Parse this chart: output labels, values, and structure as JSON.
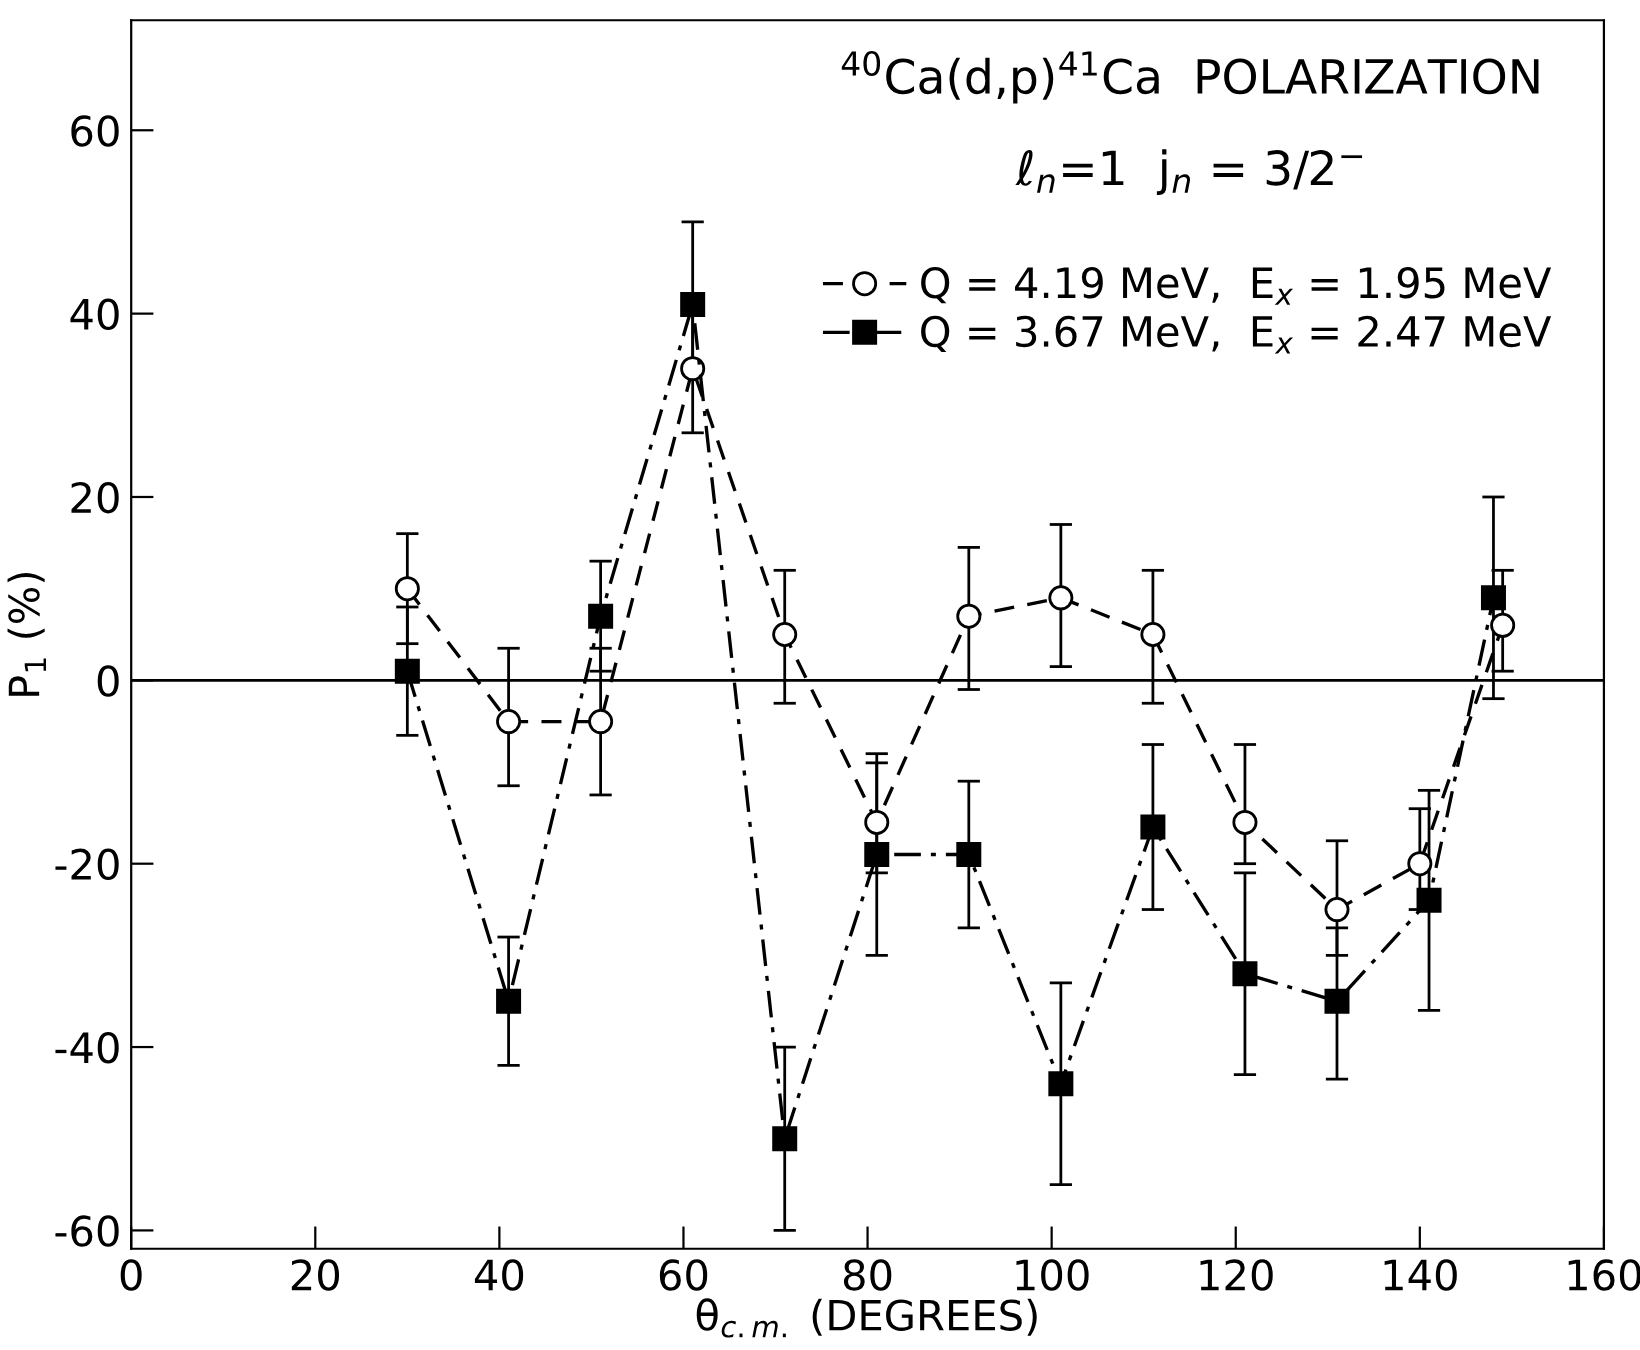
{
  "chart_data": {
    "type": "line",
    "title": "$^{40}$Ca(d,p)$^{41}$Ca  POLARIZATION",
    "subtitle": "ℓ$_{n}$=1  j$_{n}$ = 3/2$^{−}$",
    "xlabel": "θ$_{c.m.}$ (DEGREES)",
    "ylabel": "P$_{1}$ (%)",
    "series": [
      {
        "name": "Q = 4.19 MeV,  E$_{x}$ = 1.95 MeV",
        "color": "#000000",
        "marker": "circle",
        "line_style": "dashed",
        "x": [
          30,
          41,
          51,
          61,
          71,
          81,
          91,
          101,
          111,
          121,
          131,
          140,
          149
        ],
        "values": [
          10,
          -4.5,
          -4.5,
          34,
          5,
          -15.5,
          7,
          9,
          5,
          -15.5,
          -25,
          -20,
          6
        ],
        "errors": [
          [
            4,
            16
          ],
          [
            -11.5,
            3.5
          ],
          [
            -12.5,
            3.5
          ],
          [
            27,
            40
          ],
          [
            -2.5,
            12
          ],
          [
            -21,
            -8
          ],
          [
            -1,
            14.5
          ],
          [
            1.5,
            17
          ],
          [
            -2.5,
            12
          ],
          [
            -20,
            -7
          ],
          [
            -30,
            -17.5
          ],
          [
            -25,
            -14
          ],
          [
            1,
            12
          ]
        ]
      },
      {
        "name": "Q = 3.67 MeV,  E$_{x}$ = 2.47 MeV",
        "color": "#000000",
        "marker": "square",
        "line_style": "dashdot",
        "x": [
          30,
          41,
          51,
          61,
          71,
          81,
          91,
          101,
          111,
          121,
          131,
          141,
          148
        ],
        "values": [
          1,
          -35,
          7,
          41,
          -50,
          -19,
          -19,
          -44,
          -16,
          -32,
          -35,
          -24,
          9
        ],
        "errors": [
          [
            -6,
            8
          ],
          [
            -42,
            -28
          ],
          [
            1,
            13
          ],
          [
            34,
            50
          ],
          [
            -60,
            -40
          ],
          [
            -30,
            -9
          ],
          [
            -27,
            -11
          ],
          [
            -55,
            -33
          ],
          [
            -25,
            -7
          ],
          [
            -43,
            -21
          ],
          [
            -43.5,
            -27
          ],
          [
            -36,
            -12
          ],
          [
            -2,
            20
          ]
        ]
      }
    ],
    "xlim": [
      0,
      160
    ],
    "xticks": [
      0,
      20,
      40,
      60,
      80,
      100,
      120,
      140,
      160
    ],
    "ylim": [
      -62,
      72
    ],
    "yticks": [
      -60,
      -40,
      -20,
      0,
      20,
      40,
      60
    ],
    "ref_lines": [
      {
        "axis": "y",
        "value": 0,
        "color": "#000000",
        "line_style": "solid"
      }
    ],
    "grid": false,
    "legend": "top right"
  }
}
